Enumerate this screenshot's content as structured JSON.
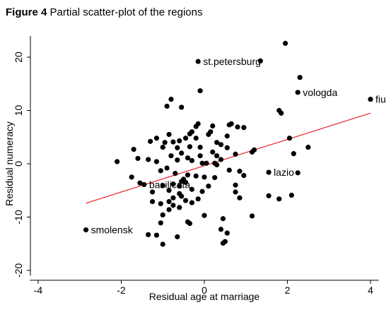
{
  "figure": {
    "number": "Figure 4",
    "title": "Partial scatter-plot of the regions"
  },
  "colors": {
    "points": "#000000",
    "fit_line": "#e8202a",
    "axes": "#000000"
  },
  "chart_data": {
    "type": "scatter",
    "title": "Partial scatter-plot of the regions",
    "xlabel": "Residual age at marriage",
    "ylabel": "Residual numeracy",
    "xlim": [
      -4.2,
      4.2
    ],
    "ylim": [
      -21,
      24
    ],
    "xticks": [
      -4,
      -2,
      0,
      2,
      4
    ],
    "xtick_labels": [
      "-4",
      "-2",
      "0",
      "2",
      "4"
    ],
    "yticks": [
      -20,
      -10,
      0,
      10,
      20
    ],
    "ytick_labels": [
      "-20",
      "-10",
      "0",
      "10",
      "20"
    ],
    "grid": false,
    "legend": "none",
    "fit_line": {
      "x": [
        -2.85,
        4.0
      ],
      "y": [
        -7.4,
        9.5
      ]
    },
    "labeled_points": [
      {
        "label": "st.petersburg",
        "x": -0.15,
        "y": 19.2
      },
      {
        "label": "vologda",
        "x": 2.25,
        "y": 13.4
      },
      {
        "label": "fiu",
        "x": 4.0,
        "y": 12.1
      },
      {
        "label": "lazio",
        "x": 1.55,
        "y": -1.6
      },
      {
        "label": "basilicata",
        "x": -1.45,
        "y": -3.9
      },
      {
        "label": "smolensk",
        "x": -2.85,
        "y": -12.4
      }
    ],
    "points": [
      [
        1.95,
        22.6
      ],
      [
        1.35,
        19.3
      ],
      [
        2.3,
        16.2
      ],
      [
        -0.1,
        13.7
      ],
      [
        -0.8,
        12.1
      ],
      [
        -0.55,
        10.6
      ],
      [
        -0.9,
        10.8
      ],
      [
        1.8,
        10.0
      ],
      [
        1.85,
        9.5
      ],
      [
        -0.15,
        7.5
      ],
      [
        -0.2,
        7.0
      ],
      [
        0.2,
        7.1
      ],
      [
        0.65,
        7.5
      ],
      [
        0.6,
        7.3
      ],
      [
        0.8,
        6.9
      ],
      [
        0.95,
        6.8
      ],
      [
        -0.3,
        6.0
      ],
      [
        -0.35,
        5.6
      ],
      [
        0.15,
        6.0
      ],
      [
        0.1,
        5.5
      ],
      [
        0.55,
        5.2
      ],
      [
        -0.85,
        5.5
      ],
      [
        -1.15,
        4.8
      ],
      [
        -1.3,
        4.2
      ],
      [
        -0.45,
        4.8
      ],
      [
        -0.2,
        4.8
      ],
      [
        -0.6,
        4.3
      ],
      [
        -0.75,
        4.1
      ],
      [
        -0.95,
        4.0
      ],
      [
        0.3,
        4.0
      ],
      [
        0.4,
        3.6
      ],
      [
        -1.0,
        3.1
      ],
      [
        -0.65,
        3.0
      ],
      [
        -0.35,
        3.2
      ],
      [
        -0.1,
        3.1
      ],
      [
        0.55,
        3.0
      ],
      [
        0.75,
        1.8
      ],
      [
        2.05,
        4.8
      ],
      [
        2.5,
        3.1
      ],
      [
        1.2,
        2.6
      ],
      [
        1.15,
        2.2
      ],
      [
        2.15,
        1.9
      ],
      [
        -1.7,
        2.7
      ],
      [
        -1.6,
        1.0
      ],
      [
        -1.35,
        0.8
      ],
      [
        -2.1,
        0.4
      ],
      [
        -0.8,
        1.5
      ],
      [
        -0.55,
        2.0
      ],
      [
        -0.4,
        1.1
      ],
      [
        -0.1,
        1.5
      ],
      [
        0.2,
        2.2
      ],
      [
        0.3,
        1.5
      ],
      [
        0.4,
        0.8
      ],
      [
        -0.65,
        0.7
      ],
      [
        -1.15,
        0.4
      ],
      [
        -0.3,
        0.6
      ],
      [
        0.05,
        0.1
      ],
      [
        0.25,
        0.1
      ],
      [
        -0.05,
        0.1
      ],
      [
        0.3,
        -0.2
      ],
      [
        -0.9,
        -0.8
      ],
      [
        -1.05,
        -1.3
      ],
      [
        -0.7,
        -1.8
      ],
      [
        -0.4,
        -2.1
      ],
      [
        -0.2,
        -2.3
      ],
      [
        0.0,
        -2.5
      ],
      [
        0.25,
        -2.6
      ],
      [
        0.6,
        -1.2
      ],
      [
        0.85,
        -1.4
      ],
      [
        0.95,
        -2.2
      ],
      [
        2.25,
        -1.7
      ],
      [
        -0.5,
        -2.9
      ],
      [
        -0.55,
        -3.3
      ],
      [
        -0.75,
        -3.8
      ],
      [
        -0.6,
        -4.2
      ],
      [
        -0.45,
        -3.5
      ],
      [
        -0.3,
        -4.8
      ],
      [
        -0.85,
        -5.0
      ],
      [
        -1.0,
        -4.1
      ],
      [
        -1.25,
        -5.3
      ],
      [
        -1.55,
        -3.6
      ],
      [
        -1.75,
        -2.5
      ],
      [
        -0.6,
        -5.6
      ],
      [
        -0.55,
        -6.1
      ],
      [
        -0.75,
        -6.4
      ],
      [
        -0.45,
        -6.9
      ],
      [
        -0.85,
        -7.1
      ],
      [
        -0.75,
        -7.8
      ],
      [
        -0.6,
        -8.2
      ],
      [
        -0.3,
        -7.3
      ],
      [
        -0.15,
        -6.6
      ],
      [
        0.1,
        -4.2
      ],
      [
        0.75,
        -4.0
      ],
      [
        0.75,
        -5.3
      ],
      [
        0.85,
        -6.4
      ],
      [
        1.55,
        -6.0
      ],
      [
        1.8,
        -6.6
      ],
      [
        2.1,
        -5.9
      ],
      [
        -1.25,
        -7.1
      ],
      [
        -1.05,
        -7.5
      ],
      [
        -0.85,
        -8.6
      ],
      [
        -1.0,
        -9.6
      ],
      [
        -0.4,
        -10.9
      ],
      [
        0.0,
        -9.7
      ],
      [
        0.45,
        -10.3
      ],
      [
        -1.05,
        -11.1
      ],
      [
        -0.35,
        -11.2
      ],
      [
        1.15,
        -9.8
      ],
      [
        -1.35,
        -13.3
      ],
      [
        -1.15,
        -13.4
      ],
      [
        -0.65,
        -13.7
      ],
      [
        0.4,
        -12.3
      ],
      [
        0.55,
        -13.0
      ],
      [
        0.5,
        -14.6
      ],
      [
        0.45,
        -14.9
      ],
      [
        -1.0,
        -15.1
      ],
      [
        -0.05,
        -5.2
      ]
    ]
  }
}
